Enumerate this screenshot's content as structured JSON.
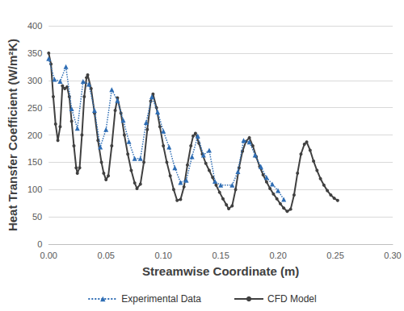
{
  "chart_data": {
    "type": "line",
    "x_label": "Streamwise Coordinate (m)",
    "y_label": "Heat Transfer Coefficient (W/m²K)",
    "xlim": [
      0,
      0.3
    ],
    "xticks": [
      {
        "value": 0,
        "label": "0.00"
      },
      {
        "value": 0.05,
        "label": "0.05"
      },
      {
        "value": 0.1,
        "label": "0.10"
      },
      {
        "value": 0.15,
        "label": "0.15"
      },
      {
        "value": 0.2,
        "label": "0.20"
      },
      {
        "value": 0.25,
        "label": "0.25"
      },
      {
        "value": 0.3,
        "label": "0.30"
      }
    ],
    "ylim": [
      0,
      400
    ],
    "yticks": [
      0,
      50,
      100,
      150,
      200,
      250,
      300,
      350,
      400
    ],
    "grid": true,
    "legend": "bottom",
    "series": [
      {
        "name": "Experimental Data",
        "color": "#2e6db4",
        "marker": "triangle",
        "line_style": "dotted",
        "x": [
          0,
          0.005,
          0.01,
          0.015,
          0.02,
          0.025,
          0.03,
          0.035,
          0.04,
          0.045,
          0.05,
          0.055,
          0.06,
          0.065,
          0.07,
          0.075,
          0.08,
          0.085,
          0.09,
          0.095,
          0.1,
          0.105,
          0.11,
          0.115,
          0.12,
          0.125,
          0.13,
          0.135,
          0.14,
          0.145,
          0.15,
          0.16,
          0.165,
          0.17,
          0.175,
          0.18,
          0.185,
          0.19,
          0.195,
          0.2,
          0.205
        ],
        "values": [
          340,
          302,
          298,
          325,
          248,
          212,
          298,
          293,
          245,
          178,
          210,
          283,
          263,
          227,
          188,
          157,
          157,
          223,
          270,
          242,
          207,
          178,
          140,
          113,
          117,
          160,
          198,
          163,
          172,
          115,
          108,
          108,
          133,
          190,
          187,
          163,
          142,
          122,
          110,
          98,
          82
        ]
      },
      {
        "name": "CFD Model",
        "color": "#404040",
        "marker": "circle",
        "line_style": "solid",
        "x": [
          0,
          0.002,
          0.004,
          0.006,
          0.008,
          0.01,
          0.012,
          0.014,
          0.016,
          0.018,
          0.02,
          0.022,
          0.024,
          0.025,
          0.027,
          0.029,
          0.031,
          0.033,
          0.034,
          0.037,
          0.04,
          0.043,
          0.046,
          0.048,
          0.05,
          0.052,
          0.055,
          0.058,
          0.06,
          0.063,
          0.066,
          0.069,
          0.072,
          0.075,
          0.077,
          0.08,
          0.083,
          0.086,
          0.089,
          0.091,
          0.094,
          0.097,
          0.1,
          0.103,
          0.106,
          0.109,
          0.112,
          0.115,
          0.118,
          0.121,
          0.124,
          0.126,
          0.128,
          0.131,
          0.134,
          0.137,
          0.14,
          0.143,
          0.146,
          0.149,
          0.152,
          0.155,
          0.157,
          0.16,
          0.163,
          0.166,
          0.169,
          0.172,
          0.175,
          0.178,
          0.181,
          0.184,
          0.187,
          0.19,
          0.193,
          0.196,
          0.199,
          0.202,
          0.205,
          0.208,
          0.211,
          0.214,
          0.217,
          0.22,
          0.223,
          0.225,
          0.228,
          0.231,
          0.234,
          0.237,
          0.24,
          0.243,
          0.246,
          0.249,
          0.252
        ],
        "values": [
          350,
          330,
          270,
          220,
          190,
          215,
          290,
          285,
          288,
          270,
          225,
          180,
          140,
          130,
          140,
          200,
          270,
          305,
          310,
          285,
          240,
          190,
          150,
          130,
          118,
          125,
          180,
          245,
          268,
          240,
          200,
          165,
          135,
          112,
          102,
          110,
          150,
          210,
          262,
          275,
          250,
          215,
          180,
          150,
          125,
          100,
          80,
          82,
          105,
          145,
          180,
          198,
          203,
          185,
          165,
          148,
          135,
          122,
          108,
          95,
          83,
          72,
          65,
          70,
          100,
          140,
          170,
          188,
          195,
          180,
          160,
          142,
          127,
          114,
          102,
          92,
          83,
          74,
          66,
          60,
          64,
          90,
          130,
          165,
          183,
          187,
          172,
          152,
          135,
          120,
          108,
          98,
          90,
          84,
          80
        ]
      }
    ]
  }
}
